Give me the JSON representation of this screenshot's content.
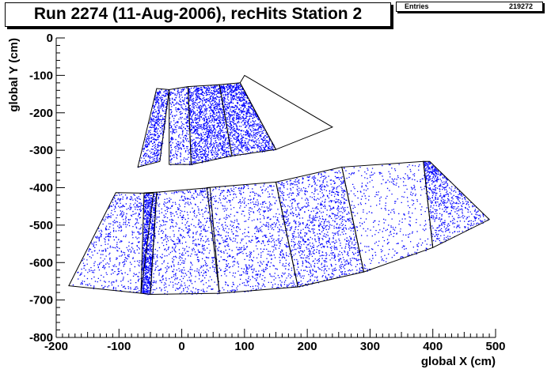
{
  "title": "Run 2274 (11-Aug-2006), recHits Station 2",
  "stats": {
    "label": "Entries",
    "value": "219272"
  },
  "colors": {
    "marker": "#0000ff",
    "outline": "#000000",
    "frame": "#000000"
  },
  "chart_data": {
    "type": "scatter",
    "title": "Run 2274 (11-Aug-2006), recHits Station 2",
    "xlabel": "global X (cm)",
    "ylabel": "global Y (cm)",
    "xlim": [
      -200,
      500
    ],
    "ylim": [
      -800,
      0
    ],
    "xticks": [
      -200,
      -100,
      0,
      100,
      200,
      300,
      400,
      500
    ],
    "yticks": [
      0,
      -100,
      -200,
      -300,
      -400,
      -500,
      -600,
      -700,
      -800
    ],
    "xtick_labels": [
      "-200",
      "-100",
      "0",
      "100",
      "200",
      "300",
      "400",
      "500"
    ],
    "ytick_labels": [
      "0",
      "-100",
      "-200",
      "-300",
      "-400",
      "-500",
      "-600",
      "-700",
      "-800"
    ],
    "grid": false,
    "entries": 219272,
    "chambers": [
      {
        "name": "inner-1",
        "corners": [
          [
            -35,
            -330
          ],
          [
            -70,
            -345
          ],
          [
            -40,
            -135
          ],
          [
            -20,
            -138
          ]
        ],
        "density": 0.35
      },
      {
        "name": "inner-2",
        "corners": [
          [
            -20,
            -338
          ],
          [
            15,
            -338
          ],
          [
            10,
            -130
          ],
          [
            -20,
            -138
          ]
        ],
        "density": 0.25
      },
      {
        "name": "inner-3",
        "corners": [
          [
            15,
            -338
          ],
          [
            80,
            -315
          ],
          [
            60,
            -125
          ],
          [
            10,
            -130
          ]
        ],
        "density": 0.85
      },
      {
        "name": "inner-4",
        "corners": [
          [
            80,
            -315
          ],
          [
            150,
            -298
          ],
          [
            93,
            -120
          ],
          [
            60,
            -125
          ]
        ],
        "density": 0.75
      },
      {
        "name": "inner-5",
        "corners": [
          [
            150,
            -298
          ],
          [
            240,
            -238
          ],
          [
            100,
            -100
          ],
          [
            93,
            -120
          ]
        ],
        "density": 0.0
      },
      {
        "name": "outer-1",
        "corners": [
          [
            -180,
            -662
          ],
          [
            -65,
            -682
          ],
          [
            -45,
            -415
          ],
          [
            -105,
            -413
          ]
        ],
        "density": 0.45
      },
      {
        "name": "outer-2",
        "corners": [
          [
            -65,
            -682
          ],
          [
            -50,
            -685
          ],
          [
            -40,
            -412
          ],
          [
            -60,
            -414
          ]
        ],
        "density": 0.6
      },
      {
        "name": "outer-3",
        "corners": [
          [
            -50,
            -685
          ],
          [
            60,
            -682
          ],
          [
            45,
            -400
          ],
          [
            -40,
            -412
          ]
        ],
        "density": 0.55
      },
      {
        "name": "outer-4",
        "corners": [
          [
            60,
            -682
          ],
          [
            185,
            -665
          ],
          [
            150,
            -385
          ],
          [
            40,
            -400
          ]
        ],
        "density": 0.65
      },
      {
        "name": "outer-5",
        "corners": [
          [
            185,
            -665
          ],
          [
            290,
            -625
          ],
          [
            255,
            -345
          ],
          [
            150,
            -385
          ]
        ],
        "density": 0.85
      },
      {
        "name": "outer-6",
        "corners": [
          [
            290,
            -625
          ],
          [
            400,
            -560
          ],
          [
            385,
            -330
          ],
          [
            255,
            -345
          ]
        ],
        "density": 0.3
      },
      {
        "name": "outer-7",
        "corners": [
          [
            400,
            -560
          ],
          [
            490,
            -485
          ],
          [
            395,
            -330
          ],
          [
            385,
            -330
          ]
        ],
        "density": 0.45
      }
    ]
  }
}
